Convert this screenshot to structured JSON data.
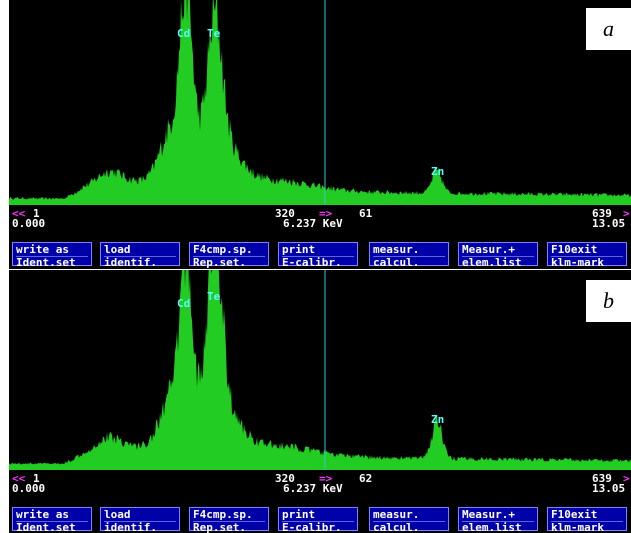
{
  "colors": {
    "spectrum": "#22cc22",
    "background": "#000000",
    "cursor": "#33cccc",
    "peak_label": "#55ffff",
    "button_bg": "#0000a8",
    "arrow": "#ff33ff"
  },
  "panels": [
    {
      "letter": "a",
      "peaks": {
        "cd": "Cd",
        "te": "Te",
        "zn": "Zn"
      },
      "status": {
        "left_channel": "1",
        "left_energy": "0.000",
        "cursor_channel": "320",
        "cursor_arrow": "=>",
        "cursor_count": "61",
        "cursor_energy": "6.237 KeV",
        "right_channel": "639",
        "right_energy": "13.05",
        "left_arrow": "<<",
        "right_arrow": ">"
      },
      "buttons": [
        {
          "l1": "write as",
          "l2": "Ident.set"
        },
        {
          "l1": "load",
          "l2": "identif."
        },
        {
          "l1": "F4cmp.sp.",
          "l2": "Rep.set."
        },
        {
          "l1": "print",
          "l2": "E-calibr."
        },
        {
          "l1": "measur.",
          "l2": "calcul."
        },
        {
          "l1": "Measur.+",
          "l2": "elem.list"
        },
        {
          "l1": "F10exit",
          "l2": "klm-mark"
        }
      ]
    },
    {
      "letter": "b",
      "peaks": {
        "cd": "Cd",
        "te": "Te",
        "zn": "Zn"
      },
      "status": {
        "left_channel": "1",
        "left_energy": "0.000",
        "cursor_channel": "320",
        "cursor_arrow": "=>",
        "cursor_count": "62",
        "cursor_energy": "6.237 KeV",
        "right_channel": "639",
        "right_energy": "13.05",
        "left_arrow": "<<",
        "right_arrow": ">"
      },
      "buttons": [
        {
          "l1": "write as",
          "l2": "Ident.set"
        },
        {
          "l1": "load",
          "l2": "identif."
        },
        {
          "l1": "F4cmp.sp.",
          "l2": "Rep.set."
        },
        {
          "l1": "print",
          "l2": "E-calibr."
        },
        {
          "l1": "measur.",
          "l2": "calcul."
        },
        {
          "l1": "Measur.+",
          "l2": "elem.list"
        },
        {
          "l1": "F10exit",
          "l2": "klm-mark"
        }
      ]
    }
  ]
}
